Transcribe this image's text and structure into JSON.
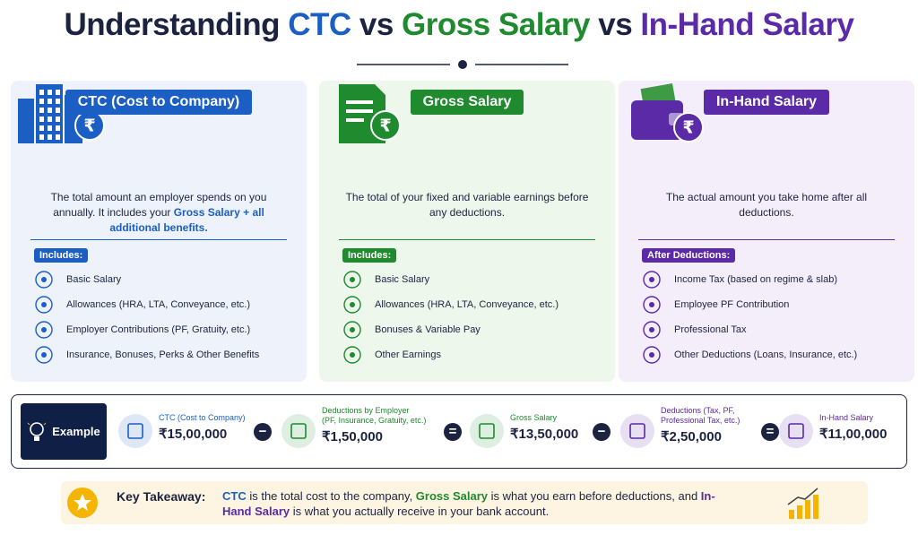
{
  "title": {
    "lead": "Understanding",
    "ctc": "CTC",
    "vs1": "vs",
    "gross": "Gross Salary",
    "vs2": "vs",
    "inhand": "In-Hand Salary"
  },
  "cards": [
    {
      "heading": "CTC (Cost to Company)",
      "color": "#1b5fc4",
      "background": "#edf2fb",
      "description": [
        "The total amount an employer spends on you annually. It includes your ",
        "Gross Salary",
        " + all additional benefits."
      ],
      "list_label": "Includes:",
      "items": [
        "Basic Salary",
        "Allowances (HRA, LTA, Conveyance, etc.)",
        "Employer Contributions (PF, Gratuity, etc.)",
        "Insurance, Bonuses, Perks & Other Benefits"
      ]
    },
    {
      "heading": "Gross Salary",
      "color": "#1f8a2e",
      "background": "#eef7ec",
      "description": [
        "The total of your fixed and variable earnings before any deductions."
      ],
      "list_label": "Includes:",
      "items": [
        "Basic Salary",
        "Allowances (HRA, LTA, Conveyance, etc.)",
        "Bonuses & Variable Pay",
        "Other Earnings"
      ]
    },
    {
      "heading": "In-Hand Salary",
      "color": "#5b2aa6",
      "background": "#f3eef9",
      "description": [
        "The actual amount you take home after all deductions."
      ],
      "list_label": "After Deductions:",
      "items": [
        "Income Tax (based on regime & slab)",
        "Employee PF Contribution",
        "Professional Tax",
        "Other Deductions (Loans, Insurance, etc.)"
      ]
    }
  ],
  "example": {
    "label": "Example",
    "steps": [
      {
        "label": [
          "CTC (Cost to Company)"
        ],
        "amount": "₹15,00,000",
        "color": "#1b5fc4"
      },
      {
        "label": [
          "Deductions by Employer",
          "(PF, Insurance, Gratuity, etc.)"
        ],
        "amount": "₹1,50,000",
        "color": "#1f8a2e"
      },
      {
        "label": [
          "Gross Salary"
        ],
        "amount": "₹13,50,000",
        "color": "#1f8a2e"
      },
      {
        "label": [
          "Deductions (Tax, PF,",
          "Professional Tax, etc.)"
        ],
        "amount": "₹2,50,000",
        "color": "#5b2aa6"
      },
      {
        "label": [
          "In-Hand Salary"
        ],
        "amount": "₹11,00,000",
        "color": "#5b2aa6"
      }
    ],
    "operators": [
      "−",
      "=",
      "−",
      "="
    ]
  },
  "takeaway": {
    "label": "Key Takeaway:",
    "text": [
      "CTC",
      " is the total cost to the company, ",
      "Gross Salary",
      " is what you earn before deductions, and ",
      "In-Hand Salary",
      " is what you actually receive in your bank account."
    ]
  }
}
